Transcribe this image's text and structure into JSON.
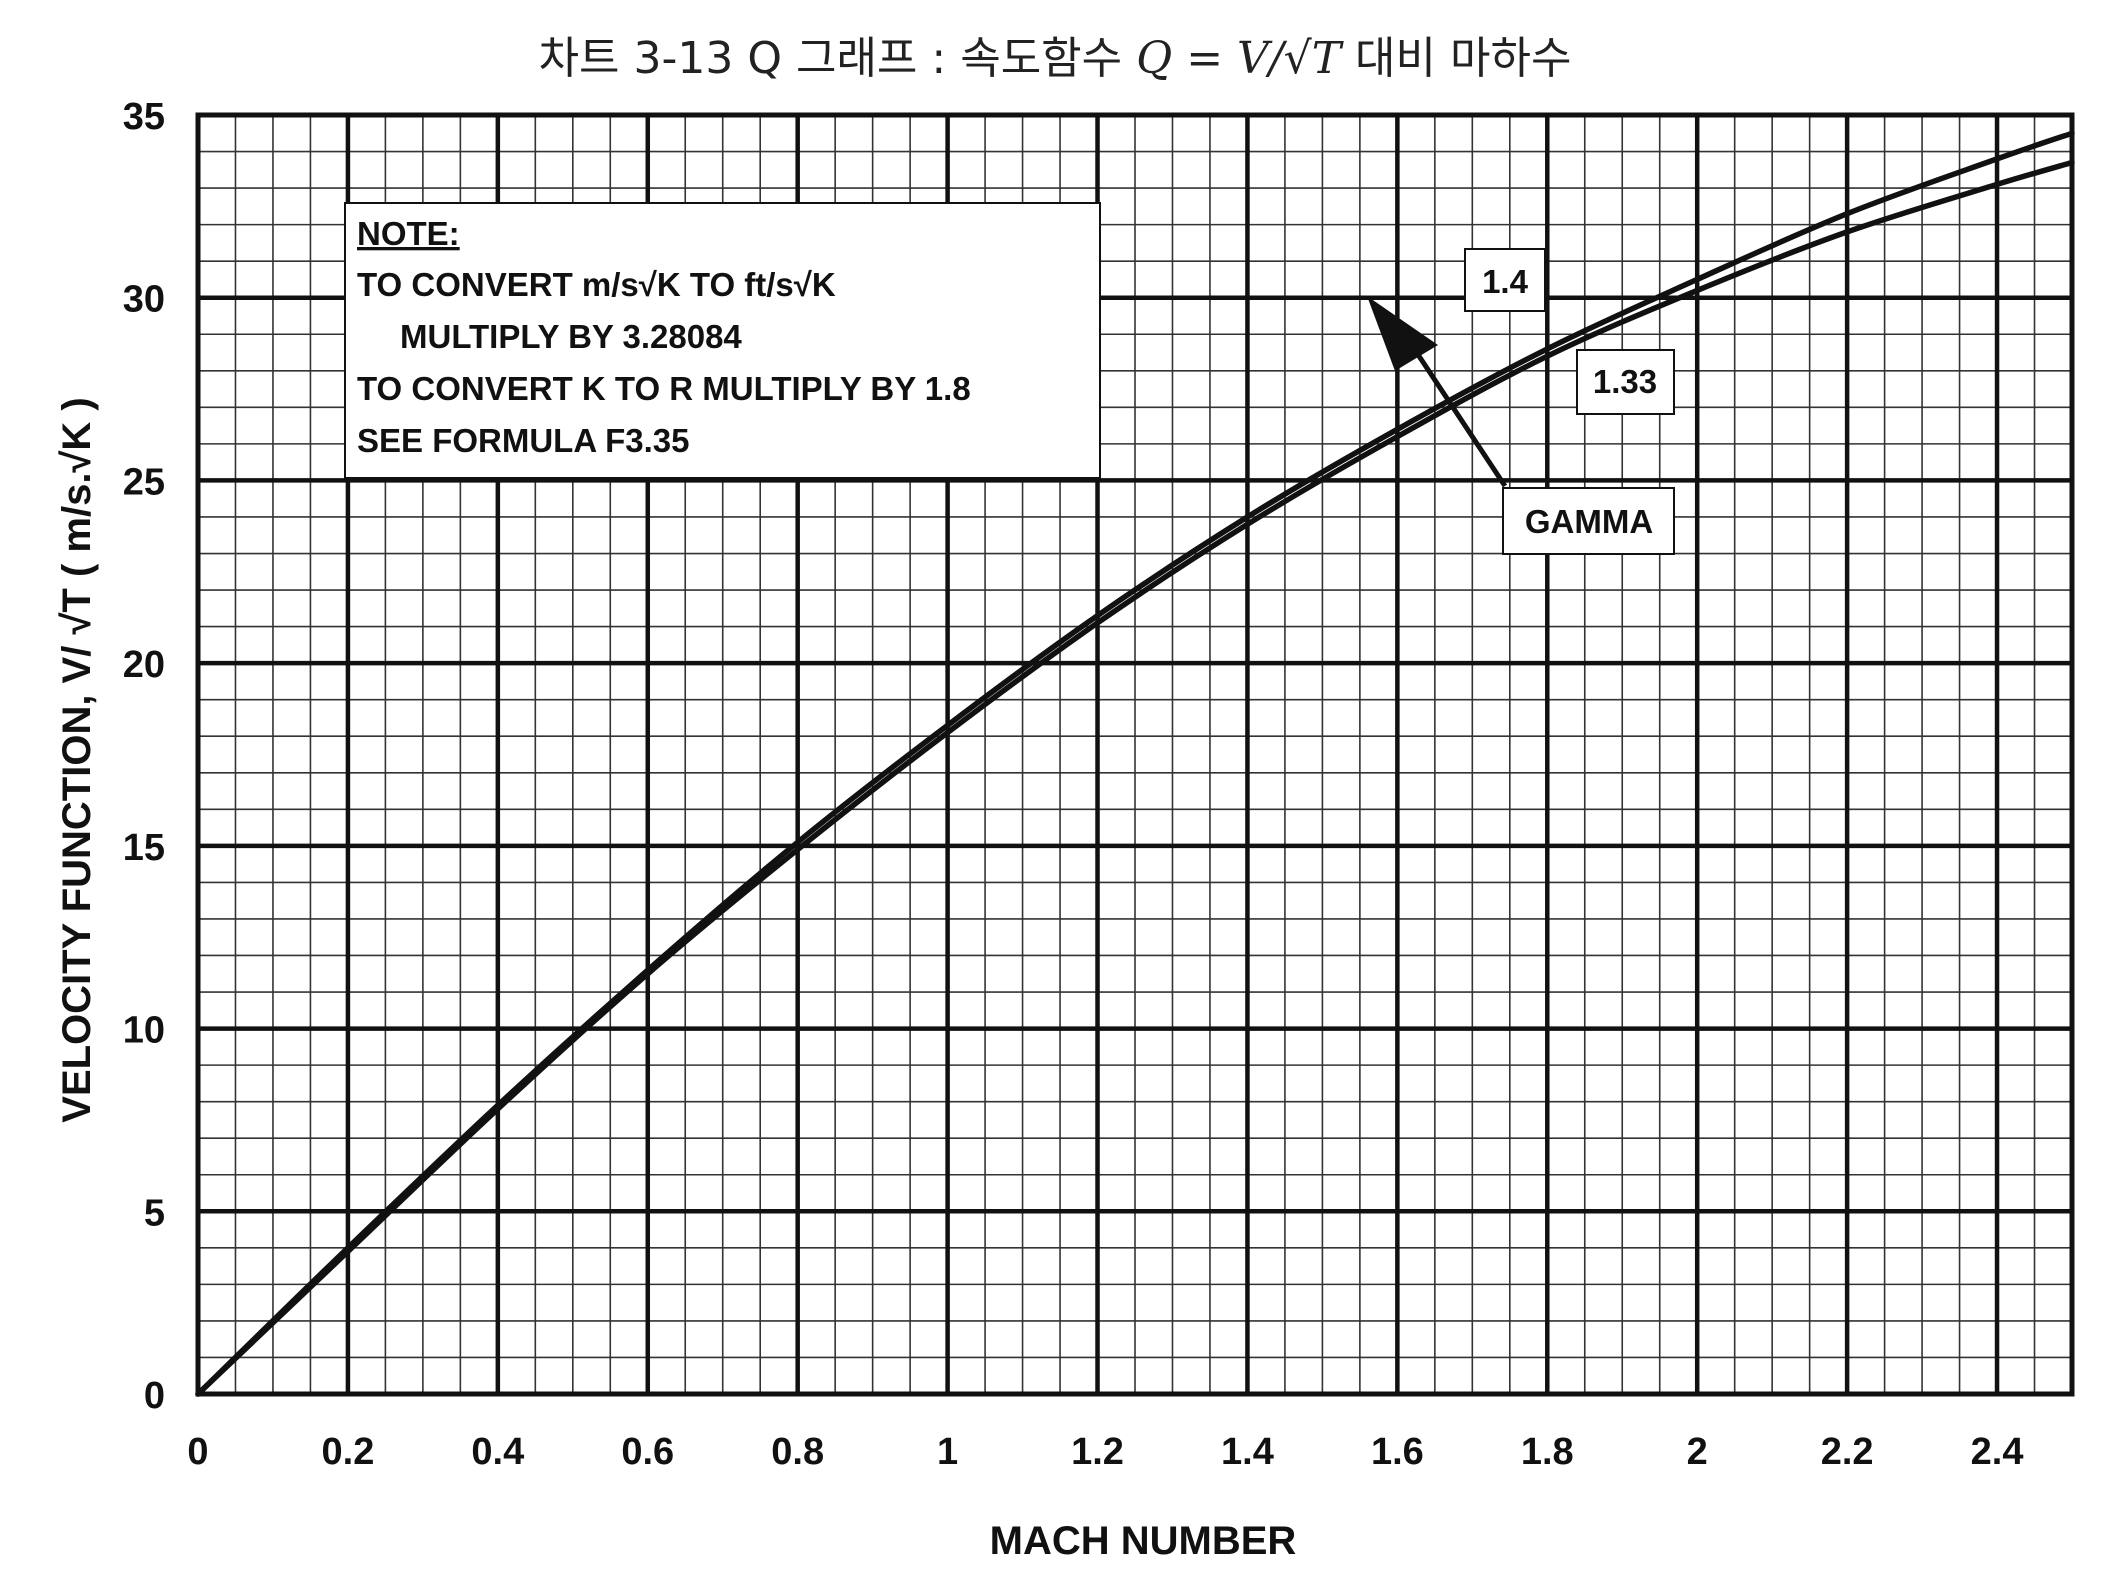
{
  "page": {
    "title_prefix": "차트 3-13 Q 그래프 : 속도함수",
    "title_formula": "Q = V/√T",
    "title_suffix": "대비 마하수"
  },
  "chart_data": {
    "type": "line",
    "xlabel": "MACH NUMBER",
    "ylabel": "VELOCITY FUNCTION,  V/ √T ( m/s.√K )",
    "xlim": [
      0,
      2.5
    ],
    "ylim": [
      0,
      35
    ],
    "x_ticks": [
      "0",
      "0.2",
      "0.4",
      "0.6",
      "0.8",
      "1",
      "1.2",
      "1.4",
      "1.6",
      "1.8",
      "2",
      "2.2",
      "2.4"
    ],
    "y_ticks": [
      "0",
      "5",
      "10",
      "15",
      "20",
      "25",
      "30",
      "35"
    ],
    "grid": true,
    "legend_title": "GAMMA",
    "series": [
      {
        "name": "1.4",
        "x": [
          0,
          0.2,
          0.4,
          0.6,
          0.8,
          1.0,
          1.2,
          1.4,
          1.6,
          1.8,
          2.0,
          2.2,
          2.4,
          2.5
        ],
        "values": [
          0,
          4.0,
          7.9,
          11.6,
          15.1,
          18.3,
          21.3,
          24.0,
          26.4,
          28.6,
          30.5,
          32.3,
          33.8,
          34.5
        ]
      },
      {
        "name": "1.33",
        "x": [
          0,
          0.2,
          0.4,
          0.6,
          0.8,
          1.0,
          1.2,
          1.4,
          1.6,
          1.8,
          2.0,
          2.2,
          2.4,
          2.5
        ],
        "values": [
          0,
          3.9,
          7.8,
          11.5,
          14.9,
          18.1,
          21.1,
          23.8,
          26.2,
          28.4,
          30.2,
          31.8,
          33.1,
          33.7
        ]
      }
    ],
    "annotations": {
      "note_heading": "NOTE:",
      "note_lines": [
        "TO CONVERT m/s√K TO ft/s√K",
        "MULTIPLY BY 3.28084",
        "TO CONVERT K TO R MULTIPLY BY 1.8",
        "SEE FORMULA F3.35"
      ],
      "label_14": "1.4",
      "label_133": "1.33",
      "gamma": "GAMMA"
    }
  }
}
